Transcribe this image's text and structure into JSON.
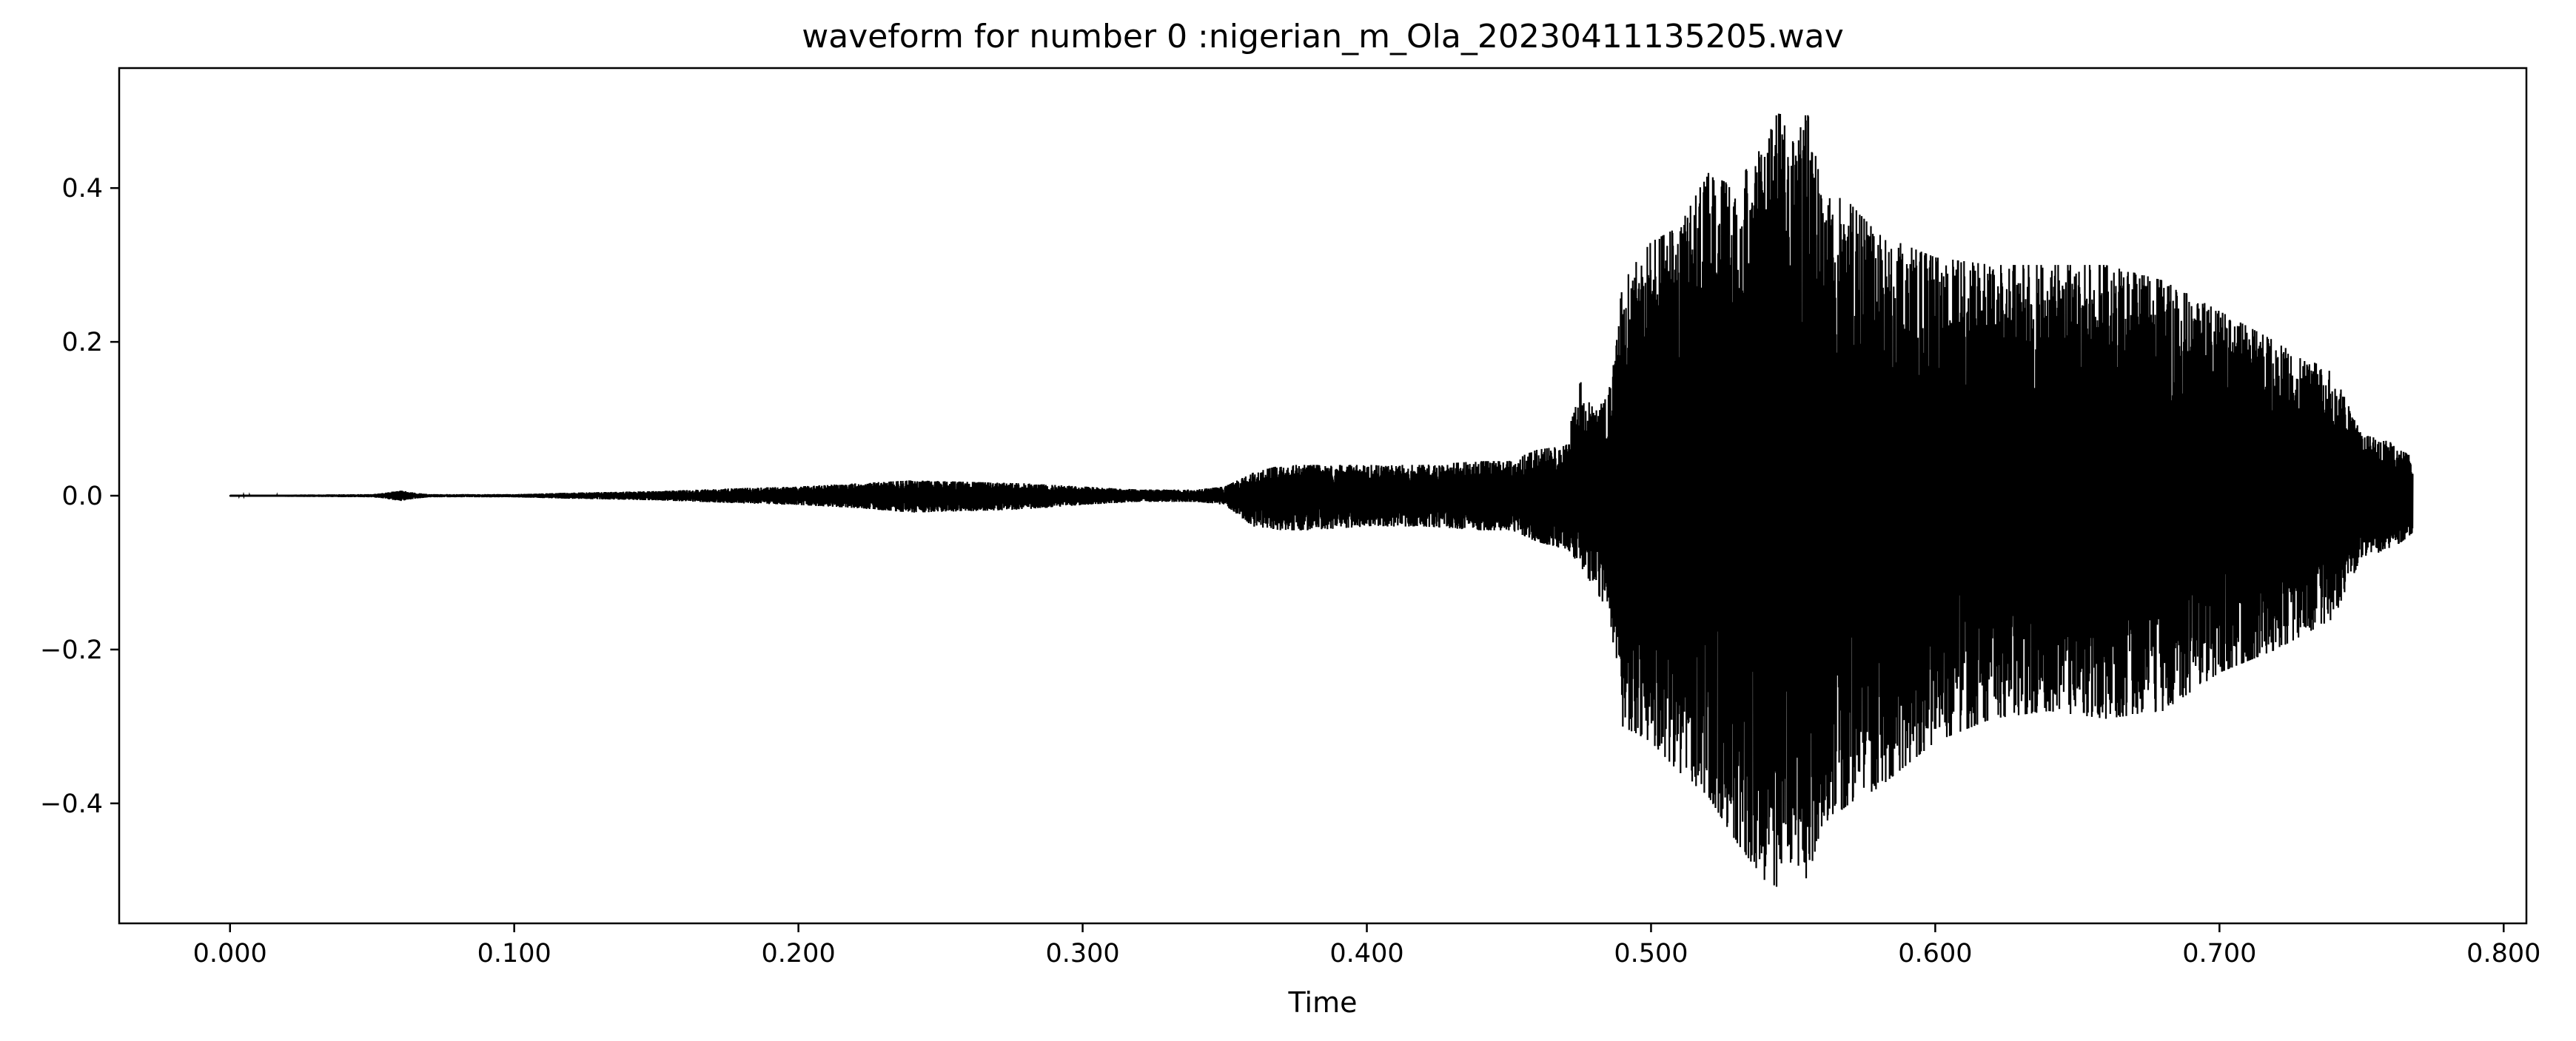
{
  "chart_data": {
    "type": "line",
    "title": "waveform for number 0 :nigerian_m_Ola_20230411135205.wav",
    "xlabel": "Time",
    "ylabel": "",
    "xlim": [
      -0.039,
      0.808
    ],
    "ylim": [
      -0.556,
      0.556
    ],
    "x_ticks": [
      0.0,
      0.1,
      0.2,
      0.3,
      0.4,
      0.5,
      0.6,
      0.7,
      0.8
    ],
    "x_tick_labels": [
      "0.000",
      "0.100",
      "0.200",
      "0.300",
      "0.400",
      "0.500",
      "0.600",
      "0.700",
      "0.800"
    ],
    "y_ticks": [
      -0.4,
      -0.2,
      0.0,
      0.2,
      0.4
    ],
    "y_tick_labels": [
      "−0.4",
      "−0.2",
      "0.0",
      "0.2",
      "0.4"
    ],
    "grid": false,
    "legend": "none",
    "line_color": "#000000",
    "series": [
      {
        "x_range": [
          0.0,
          0.768
        ],
        "envelope": {
          "t": [
            0.0,
            0.05,
            0.055,
            0.06,
            0.065,
            0.07,
            0.1,
            0.12,
            0.15,
            0.18,
            0.2,
            0.22,
            0.24,
            0.26,
            0.28,
            0.3,
            0.32,
            0.34,
            0.35,
            0.36,
            0.37,
            0.38,
            0.4,
            0.42,
            0.44,
            0.45,
            0.46,
            0.47,
            0.475,
            0.48,
            0.485,
            0.49,
            0.5,
            0.51,
            0.52,
            0.53,
            0.54,
            0.545,
            0.55,
            0.555,
            0.56,
            0.57,
            0.58,
            0.6,
            0.62,
            0.64,
            0.66,
            0.68,
            0.7,
            0.72,
            0.74,
            0.75,
            0.76,
            0.768
          ],
          "upper": [
            0.001,
            0.002,
            0.004,
            0.007,
            0.004,
            0.002,
            0.002,
            0.004,
            0.006,
            0.01,
            0.012,
            0.016,
            0.02,
            0.018,
            0.016,
            0.012,
            0.008,
            0.008,
            0.012,
            0.03,
            0.04,
            0.04,
            0.04,
            0.04,
            0.045,
            0.045,
            0.06,
            0.065,
            0.15,
            0.11,
            0.13,
            0.28,
            0.33,
            0.35,
            0.42,
            0.4,
            0.47,
            0.5,
            0.46,
            0.5,
            0.4,
            0.38,
            0.34,
            0.31,
            0.3,
            0.3,
            0.3,
            0.28,
            0.24,
            0.2,
            0.16,
            0.08,
            0.07,
            0.05
          ],
          "lower": [
            -0.001,
            -0.002,
            -0.004,
            -0.007,
            -0.004,
            -0.002,
            -0.002,
            -0.004,
            -0.006,
            -0.01,
            -0.012,
            -0.016,
            -0.022,
            -0.02,
            -0.018,
            -0.012,
            -0.008,
            -0.008,
            -0.012,
            -0.04,
            -0.045,
            -0.045,
            -0.04,
            -0.04,
            -0.045,
            -0.045,
            -0.06,
            -0.07,
            -0.09,
            -0.12,
            -0.15,
            -0.3,
            -0.32,
            -0.36,
            -0.39,
            -0.45,
            -0.5,
            -0.51,
            -0.47,
            -0.5,
            -0.43,
            -0.4,
            -0.38,
            -0.32,
            -0.29,
            -0.28,
            -0.29,
            -0.28,
            -0.23,
            -0.2,
            -0.16,
            -0.08,
            -0.07,
            -0.05
          ]
        }
      }
    ]
  }
}
